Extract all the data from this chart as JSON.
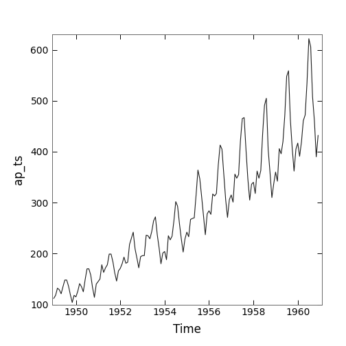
{
  "title": "",
  "xlabel": "Time",
  "ylabel": "ap_ts",
  "xlim": [
    1948.917,
    1961.083
  ],
  "ylim": [
    100,
    630
  ],
  "yticks": [
    100,
    200,
    300,
    400,
    500,
    600
  ],
  "xticks": [
    1950,
    1952,
    1954,
    1956,
    1958,
    1960
  ],
  "line_color": "#1a1a1a",
  "line_width": 0.8,
  "background_color": "#ffffff",
  "values": [
    112,
    118,
    132,
    129,
    121,
    135,
    148,
    148,
    136,
    119,
    104,
    118,
    115,
    126,
    141,
    135,
    125,
    149,
    170,
    170,
    158,
    133,
    114,
    140,
    145,
    150,
    178,
    163,
    172,
    178,
    199,
    199,
    184,
    162,
    146,
    166,
    171,
    180,
    193,
    181,
    183,
    218,
    230,
    242,
    209,
    191,
    172,
    194,
    196,
    196,
    236,
    235,
    229,
    243,
    264,
    272,
    237,
    211,
    180,
    201,
    204,
    188,
    235,
    227,
    234,
    264,
    302,
    293,
    259,
    229,
    203,
    229,
    242,
    233,
    267,
    269,
    270,
    315,
    364,
    347,
    312,
    274,
    237,
    278,
    284,
    277,
    317,
    313,
    318,
    374,
    413,
    405,
    355,
    306,
    271,
    306,
    315,
    301,
    356,
    348,
    355,
    422,
    465,
    467,
    404,
    347,
    305,
    336,
    340,
    318,
    362,
    348,
    363,
    435,
    491,
    505,
    404,
    359,
    310,
    337,
    360,
    342,
    406,
    396,
    420,
    472,
    548,
    559,
    463,
    407,
    362,
    405,
    417,
    391,
    419,
    461,
    472,
    535,
    622,
    606,
    508,
    461,
    390,
    432
  ],
  "start_year": 1949,
  "start_month": 1,
  "freq": 12
}
